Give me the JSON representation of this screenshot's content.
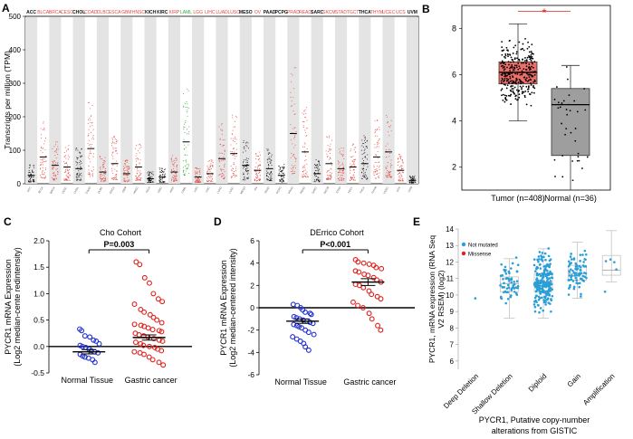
{
  "colors": {
    "tumor": "#e8473f",
    "normal": "#2eaa2e",
    "black": "#111111",
    "blue": "#1f2fd0",
    "red": "#e0201a",
    "cbio": "#2a9fd6",
    "shade": "#e4e4e4"
  },
  "chart_data": [
    {
      "panel": "A",
      "type": "scatter",
      "ylabel": "Transcripts per million (TPM)",
      "ylim": [
        0,
        500
      ],
      "yticks": [
        0,
        100,
        200,
        300,
        400,
        500
      ],
      "cancer_types": [
        {
          "name": "ACC",
          "color": "black",
          "median": 25
        },
        {
          "name": "BLCA",
          "color": "red",
          "median": 80
        },
        {
          "name": "BRCA",
          "color": "red",
          "median": 55
        },
        {
          "name": "CESC",
          "color": "red",
          "median": 50
        },
        {
          "name": "CHOL",
          "color": "black",
          "median": 45
        },
        {
          "name": "COAD",
          "color": "red",
          "median": 105
        },
        {
          "name": "DLBC",
          "color": "red",
          "median": 35
        },
        {
          "name": "ESCA",
          "color": "red",
          "median": 60
        },
        {
          "name": "GBM",
          "color": "red",
          "median": 30
        },
        {
          "name": "HNSC",
          "color": "red",
          "median": 50
        },
        {
          "name": "KICH",
          "color": "black",
          "median": 15
        },
        {
          "name": "KIRC",
          "color": "black",
          "median": 20
        },
        {
          "name": "KIRP",
          "color": "red",
          "median": 35
        },
        {
          "name": "LAML",
          "color": "green",
          "median": 125
        },
        {
          "name": "LGG",
          "color": "red",
          "median": 20
        },
        {
          "name": "LIHC",
          "color": "red",
          "median": 30
        },
        {
          "name": "LUAD",
          "color": "red",
          "median": 75
        },
        {
          "name": "LUSC",
          "color": "red",
          "median": 90
        },
        {
          "name": "MESO",
          "color": "black",
          "median": 55
        },
        {
          "name": "OV",
          "color": "red",
          "median": 40
        },
        {
          "name": "PAAD",
          "color": "black",
          "median": 45
        },
        {
          "name": "PCPG",
          "color": "black",
          "median": 25
        },
        {
          "name": "PRAD",
          "color": "red",
          "median": 150
        },
        {
          "name": "READ",
          "color": "red",
          "median": 95
        },
        {
          "name": "SARC",
          "color": "black",
          "median": 30
        },
        {
          "name": "SKCM",
          "color": "red",
          "median": 60
        },
        {
          "name": "STAD",
          "color": "red",
          "median": 45
        },
        {
          "name": "TGCT",
          "color": "red",
          "median": 50
        },
        {
          "name": "THCA",
          "color": "black",
          "median": 60
        },
        {
          "name": "THYM",
          "color": "red",
          "median": 80
        },
        {
          "name": "UCEC",
          "color": "red",
          "median": 95
        },
        {
          "name": "UCS",
          "color": "red",
          "median": 40
        },
        {
          "name": "UVM",
          "color": "black",
          "median": 10
        }
      ]
    },
    {
      "panel": "B",
      "type": "box",
      "ylim": [
        1,
        9
      ],
      "yticks": [
        2,
        4,
        6,
        8
      ],
      "significance": "*",
      "groups": [
        {
          "label": "Tumor (n=408)",
          "q1": 5.6,
          "median": 6.1,
          "q3": 6.55,
          "whisker_low": 4.0,
          "whisker_high": 8.2,
          "color": "tumor"
        },
        {
          "label": "Normal (n=36)",
          "q1": 2.5,
          "median": 4.7,
          "q3": 5.4,
          "whisker_low": 1.0,
          "whisker_high": 6.4,
          "color": "grey"
        }
      ]
    },
    {
      "panel": "C",
      "type": "scatter",
      "title": "Cho Cohort",
      "ylabel": "PYCR1 mRNA Expression",
      "ylabel2": "(Log2 median-cente redintensity)",
      "ylim": [
        -0.5,
        2.0
      ],
      "yticks": [
        "2.0",
        "1.5",
        "1.0",
        "0.5",
        "0.0",
        "-0.5"
      ],
      "categories": [
        "Normal Tissue",
        "Gastric cancer"
      ],
      "pvalue": "P=0.003",
      "series": [
        {
          "name": "Normal Tissue",
          "values": [
            0.33,
            0.3,
            0.2,
            0.18,
            0.12,
            0.1,
            0.05,
            0.02,
            0.0,
            -0.02,
            -0.05,
            -0.08,
            -0.1,
            -0.12,
            -0.15,
            -0.18,
            -0.2,
            -0.22,
            -0.25,
            -0.3
          ],
          "mean": -0.1,
          "sem": 0.04
        },
        {
          "name": "Gastric cancer",
          "values": [
            1.6,
            1.55,
            1.3,
            1.2,
            1.0,
            0.9,
            0.85,
            0.8,
            0.7,
            0.65,
            0.6,
            0.55,
            0.5,
            0.45,
            0.42,
            0.4,
            0.38,
            0.35,
            0.32,
            0.3,
            0.28,
            0.25,
            0.22,
            0.2,
            0.18,
            0.15,
            0.12,
            0.1,
            0.08,
            0.05,
            0.02,
            0.0,
            -0.02,
            -0.05,
            -0.08,
            -0.1,
            -0.12,
            -0.15,
            -0.2,
            -0.25,
            -0.3,
            -0.35
          ],
          "mean": 0.17,
          "sem": 0.05
        }
      ]
    },
    {
      "panel": "D",
      "type": "scatter",
      "title": "DErrico Cohort",
      "ylabel": "PYCR1 mRNA Expression",
      "ylabel2": "(Log2 median-centered intensity)",
      "ylim": [
        -6,
        6
      ],
      "yticks": [
        "6",
        "4",
        "2",
        "0",
        "-2",
        "-4",
        "-6"
      ],
      "categories": [
        "Normal Tissue",
        "Gastric cancer"
      ],
      "pvalue": "P<0.001",
      "series": [
        {
          "name": "Normal Tissue",
          "values": [
            0.3,
            0.2,
            0.0,
            -0.2,
            -0.4,
            -0.5,
            -0.6,
            -0.8,
            -0.9,
            -1.0,
            -1.1,
            -1.2,
            -1.3,
            -1.4,
            -1.5,
            -1.6,
            -1.7,
            -1.8,
            -2.0,
            -2.2,
            -2.4,
            -2.6,
            -2.8,
            -3.0,
            -3.2,
            -3.5,
            -3.8
          ],
          "mean": -1.2,
          "sem": 0.2
        },
        {
          "name": "Gastric cancer",
          "values": [
            4.3,
            4.1,
            4.0,
            3.9,
            3.8,
            3.6,
            3.5,
            3.3,
            3.2,
            3.0,
            2.9,
            2.7,
            2.5,
            2.3,
            2.1,
            2.0,
            1.8,
            1.5,
            1.2,
            1.0,
            0.8,
            0.5,
            0.2,
            0.0,
            -0.5,
            -1.0,
            -1.6,
            -2.0
          ],
          "mean": 2.3,
          "sem": 0.3
        }
      ]
    },
    {
      "panel": "E",
      "type": "box",
      "ylabel": "PYCR1, mRNA expression (RNA Seq",
      "ylabel2": "V2 RSEM) (log2)",
      "xlabel": "PYCR1, Putative copy-number",
      "xlabel2": "alterations from GISTIC",
      "ylim": [
        5.5,
        14
      ],
      "yticks": [
        6,
        7,
        8,
        9,
        10,
        11,
        12,
        13,
        14
      ],
      "legend": [
        "Not mutated",
        "Missense"
      ],
      "categories": [
        {
          "label": "Deep Deletion",
          "q1": 9.8,
          "median": 9.8,
          "q3": 9.8,
          "whisker_low": 9.8,
          "whisker_high": 9.8,
          "n": 1
        },
        {
          "label": "Shallow Deletion",
          "q1": 10.2,
          "median": 10.7,
          "q3": 11.1,
          "whisker_low": 8.6,
          "whisker_high": 12.2,
          "n": 60
        },
        {
          "label": "Diploid",
          "q1": 10.2,
          "median": 10.8,
          "q3": 11.3,
          "whisker_low": 8.6,
          "whisker_high": 12.8,
          "n": 220
        },
        {
          "label": "Gain",
          "q1": 10.9,
          "median": 11.3,
          "q3": 11.8,
          "whisker_low": 9.8,
          "whisker_high": 13.2,
          "n": 80
        },
        {
          "label": "Amplification",
          "q1": 11.2,
          "median": 11.5,
          "q3": 12.4,
          "whisker_low": 10.8,
          "whisker_high": 13.9,
          "n": 5
        }
      ]
    }
  ],
  "labels": {
    "a": "A",
    "b": "B",
    "c": "C",
    "d": "D",
    "e": "E"
  }
}
